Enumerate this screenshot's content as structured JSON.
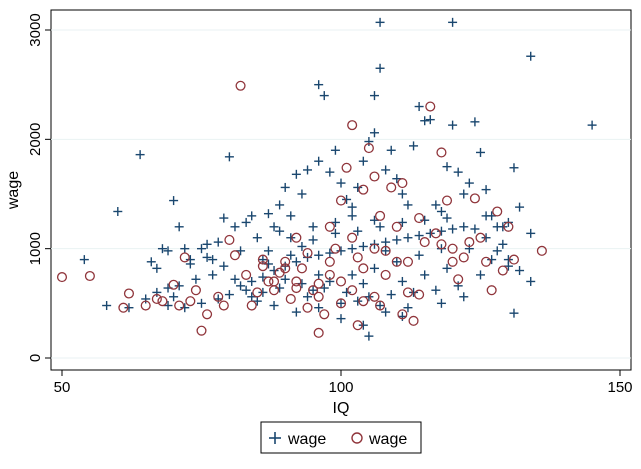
{
  "chart_data": {
    "type": "scatter",
    "title": "",
    "xlabel": "IQ",
    "ylabel": "wage",
    "xlim": [
      50,
      150
    ],
    "ylim": [
      0,
      3000
    ],
    "xticks": [
      50,
      100,
      150
    ],
    "yticks": [
      0,
      1000,
      2000,
      3000
    ],
    "grid": "horizontal",
    "legend_position": "bottom",
    "series": [
      {
        "name": "wage",
        "marker": "plus",
        "color": "#1a476f",
        "points": [
          [
            54,
            900
          ],
          [
            60,
            1340
          ],
          [
            64,
            1860
          ],
          [
            66,
            880
          ],
          [
            67,
            820
          ],
          [
            68,
            1000
          ],
          [
            69,
            980
          ],
          [
            69,
            480
          ],
          [
            70,
            1440
          ],
          [
            71,
            1200
          ],
          [
            72,
            1000
          ],
          [
            73,
            900
          ],
          [
            74,
            720
          ],
          [
            75,
            1000
          ],
          [
            76,
            920
          ],
          [
            77,
            760
          ],
          [
            78,
            1060
          ],
          [
            79,
            1280
          ],
          [
            80,
            1840
          ],
          [
            81,
            1200
          ],
          [
            82,
            980
          ],
          [
            83,
            1240
          ],
          [
            84,
            1300
          ],
          [
            85,
            1100
          ],
          [
            86,
            900
          ],
          [
            87,
            1320
          ],
          [
            88,
            1200
          ],
          [
            89,
            1400
          ],
          [
            90,
            1560
          ],
          [
            91,
            1100
          ],
          [
            92,
            1680
          ],
          [
            93,
            1500
          ],
          [
            94,
            1720
          ],
          [
            95,
            1200
          ],
          [
            96,
            2500
          ],
          [
            96,
            1800
          ],
          [
            97,
            2400
          ],
          [
            98,
            1700
          ],
          [
            99,
            1900
          ],
          [
            100,
            1600
          ],
          [
            101,
            1450
          ],
          [
            102,
            1300
          ],
          [
            103,
            1560
          ],
          [
            104,
            1800
          ],
          [
            104,
            300
          ],
          [
            105,
            1980
          ],
          [
            105,
            200
          ],
          [
            106,
            2400
          ],
          [
            106,
            2060
          ],
          [
            107,
            2650
          ],
          [
            107,
            3070
          ],
          [
            108,
            1720
          ],
          [
            109,
            1900
          ],
          [
            110,
            1640
          ],
          [
            111,
            1500
          ],
          [
            112,
            1400
          ],
          [
            113,
            1940
          ],
          [
            114,
            2300
          ],
          [
            115,
            2170
          ],
          [
            116,
            2180
          ],
          [
            117,
            1400
          ],
          [
            118,
            1340
          ],
          [
            119,
            1750
          ],
          [
            120,
            3070
          ],
          [
            120,
            2130
          ],
          [
            121,
            1700
          ],
          [
            122,
            1500
          ],
          [
            123,
            1600
          ],
          [
            124,
            2160
          ],
          [
            125,
            1880
          ],
          [
            126,
            1540
          ],
          [
            127,
            1300
          ],
          [
            128,
            1200
          ],
          [
            129,
            1040
          ],
          [
            130,
            1240
          ],
          [
            131,
            1740
          ],
          [
            132,
            1380
          ],
          [
            134,
            1140
          ],
          [
            134,
            2760
          ],
          [
            145,
            2130
          ],
          [
            58,
            480
          ],
          [
            62,
            460
          ],
          [
            65,
            540
          ],
          [
            70,
            560
          ],
          [
            72,
            460
          ],
          [
            75,
            500
          ],
          [
            78,
            540
          ],
          [
            80,
            580
          ],
          [
            82,
            660
          ],
          [
            84,
            700
          ],
          [
            86,
            740
          ],
          [
            88,
            800
          ],
          [
            90,
            840
          ],
          [
            92,
            880
          ],
          [
            94,
            920
          ],
          [
            96,
            940
          ],
          [
            98,
            960
          ],
          [
            100,
            980
          ],
          [
            102,
            1000
          ],
          [
            104,
            1020
          ],
          [
            106,
            1040
          ],
          [
            108,
            1060
          ],
          [
            110,
            1080
          ],
          [
            112,
            1100
          ],
          [
            114,
            1120
          ],
          [
            116,
            1140
          ],
          [
            118,
            1160
          ],
          [
            120,
            1180
          ],
          [
            122,
            1200
          ],
          [
            124,
            1180
          ],
          [
            126,
            1100
          ],
          [
            128,
            980
          ],
          [
            130,
            900
          ],
          [
            132,
            800
          ],
          [
            134,
            700
          ],
          [
            131,
            410
          ],
          [
            122,
            560
          ],
          [
            118,
            500
          ],
          [
            112,
            460
          ],
          [
            108,
            420
          ],
          [
            100,
            500
          ],
          [
            96,
            460
          ],
          [
            92,
            420
          ],
          [
            88,
            480
          ],
          [
            85,
            520
          ],
          [
            83,
            620
          ],
          [
            87,
            860
          ],
          [
            91,
            940
          ],
          [
            95,
            1080
          ],
          [
            99,
            1140
          ],
          [
            103,
            1160
          ],
          [
            107,
            1200
          ],
          [
            111,
            1240
          ],
          [
            115,
            1260
          ],
          [
            119,
            1280
          ],
          [
            123,
            1000
          ],
          [
            127,
            900
          ],
          [
            125,
            760
          ],
          [
            121,
            660
          ],
          [
            117,
            620
          ],
          [
            113,
            600
          ],
          [
            109,
            580
          ],
          [
            105,
            560
          ],
          [
            101,
            600
          ],
          [
            97,
            640
          ],
          [
            93,
            680
          ],
          [
            89,
            640
          ],
          [
            86,
            600
          ],
          [
            84,
            560
          ],
          [
            81,
            720
          ],
          [
            79,
            840
          ],
          [
            77,
            900
          ],
          [
            73,
            860
          ],
          [
            71,
            660
          ],
          [
            69,
            640
          ],
          [
            67,
            600
          ],
          [
            76,
            1040
          ],
          [
            94,
            560
          ],
          [
            98,
            700
          ],
          [
            102,
            760
          ],
          [
            106,
            820
          ],
          [
            110,
            880
          ],
          [
            114,
            940
          ],
          [
            118,
            1000
          ],
          [
            102,
            1380
          ],
          [
            106,
            1260
          ],
          [
            99,
            1240
          ],
          [
            91,
            1300
          ],
          [
            89,
            1160
          ],
          [
            108,
            980
          ],
          [
            104,
            680
          ],
          [
            96,
            760
          ],
          [
            93,
            1020
          ],
          [
            111,
            700
          ],
          [
            115,
            760
          ],
          [
            119,
            820
          ],
          [
            126,
            1300
          ],
          [
            129,
            1200
          ],
          [
            130,
            840
          ],
          [
            103,
            520
          ],
          [
            107,
            480
          ],
          [
            111,
            380
          ],
          [
            100,
            360
          ],
          [
            95,
            620
          ],
          [
            90,
            720
          ],
          [
            87,
            980
          ]
        ]
      },
      {
        "name": "wage",
        "marker": "hollow-circle",
        "color": "#90353b",
        "points": [
          [
            50,
            740
          ],
          [
            55,
            750
          ],
          [
            61,
            460
          ],
          [
            62,
            590
          ],
          [
            65,
            480
          ],
          [
            67,
            540
          ],
          [
            68,
            520
          ],
          [
            70,
            670
          ],
          [
            71,
            480
          ],
          [
            72,
            920
          ],
          [
            73,
            520
          ],
          [
            74,
            620
          ],
          [
            75,
            250
          ],
          [
            76,
            400
          ],
          [
            78,
            560
          ],
          [
            79,
            480
          ],
          [
            80,
            1080
          ],
          [
            81,
            940
          ],
          [
            82,
            2490
          ],
          [
            83,
            760
          ],
          [
            84,
            480
          ],
          [
            85,
            600
          ],
          [
            86,
            840
          ],
          [
            87,
            700
          ],
          [
            88,
            620
          ],
          [
            89,
            780
          ],
          [
            90,
            880
          ],
          [
            91,
            540
          ],
          [
            92,
            700
          ],
          [
            93,
            820
          ],
          [
            94,
            460
          ],
          [
            95,
            620
          ],
          [
            96,
            230
          ],
          [
            97,
            400
          ],
          [
            98,
            760
          ],
          [
            99,
            1000
          ],
          [
            100,
            1440
          ],
          [
            101,
            1740
          ],
          [
            102,
            2130
          ],
          [
            103,
            920
          ],
          [
            104,
            1540
          ],
          [
            105,
            1920
          ],
          [
            106,
            1660
          ],
          [
            107,
            1300
          ],
          [
            108,
            980
          ],
          [
            109,
            1560
          ],
          [
            110,
            880
          ],
          [
            111,
            1600
          ],
          [
            112,
            600
          ],
          [
            113,
            340
          ],
          [
            114,
            580
          ],
          [
            115,
            1060
          ],
          [
            116,
            2300
          ],
          [
            117,
            1140
          ],
          [
            118,
            1880
          ],
          [
            119,
            1440
          ],
          [
            120,
            1000
          ],
          [
            121,
            720
          ],
          [
            122,
            920
          ],
          [
            123,
            1060
          ],
          [
            124,
            1460
          ],
          [
            125,
            1100
          ],
          [
            126,
            880
          ],
          [
            127,
            620
          ],
          [
            128,
            1340
          ],
          [
            129,
            800
          ],
          [
            130,
            1200
          ],
          [
            131,
            900
          ],
          [
            136,
            980
          ],
          [
            88,
            700
          ],
          [
            92,
            640
          ],
          [
            96,
            560
          ],
          [
            100,
            700
          ],
          [
            104,
            820
          ],
          [
            108,
            760
          ],
          [
            112,
            880
          ],
          [
            104,
            520
          ],
          [
            100,
            500
          ],
          [
            96,
            680
          ],
          [
            92,
            1100
          ],
          [
            98,
            1200
          ],
          [
            102,
            1100
          ],
          [
            106,
            1000
          ],
          [
            110,
            1200
          ],
          [
            114,
            1280
          ],
          [
            118,
            1040
          ],
          [
            120,
            880
          ],
          [
            106,
            560
          ],
          [
            102,
            620
          ],
          [
            98,
            880
          ],
          [
            94,
            960
          ],
          [
            90,
            820
          ],
          [
            86,
            900
          ],
          [
            103,
            300
          ],
          [
            107,
            480
          ],
          [
            111,
            400
          ]
        ]
      }
    ]
  },
  "legend": {
    "items": [
      {
        "label": "wage",
        "marker": "plus"
      },
      {
        "label": "wage",
        "marker": "hollow-circle"
      }
    ]
  }
}
